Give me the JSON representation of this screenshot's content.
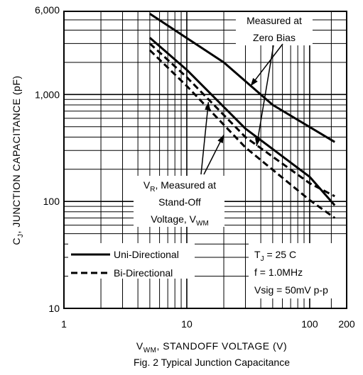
{
  "chart_data": {
    "type": "line",
    "scale": "log-log",
    "xlim": [
      1,
      200
    ],
    "ylim": [
      10,
      6000
    ],
    "grid": true,
    "x_ticks": [
      {
        "value": 1,
        "label": "1"
      },
      {
        "value": 10,
        "label": "10"
      },
      {
        "value": 100,
        "label": "100"
      },
      {
        "value": 200,
        "label": "200"
      }
    ],
    "y_ticks": [
      {
        "value": 10,
        "label": "10"
      },
      {
        "value": 100,
        "label": "100"
      },
      {
        "value": 1000,
        "label": "1,000"
      },
      {
        "value": 6000,
        "label": "6,000"
      }
    ],
    "xlabel": {
      "main": "V",
      "sub": "WM",
      "rest": ", STANDOFF VOLTAGE (V)"
    },
    "ylabel": {
      "main": "C",
      "sub": "J",
      "rest": ", JUNCTION CAPACITANCE (pF)"
    },
    "caption": "Fig. 2 Typical Junction Capacitance",
    "series": [
      {
        "style": "solid",
        "x": [
          5,
          20,
          50,
          160
        ],
        "y": [
          5700,
          2000,
          800,
          360
        ]
      },
      {
        "style": "solid",
        "x": [
          5,
          10,
          30,
          100,
          160
        ],
        "y": [
          3400,
          1700,
          480,
          170,
          92
        ]
      },
      {
        "style": "dashed",
        "x": [
          5,
          10,
          30,
          100,
          160
        ],
        "y": [
          3000,
          1450,
          400,
          148,
          112
        ]
      },
      {
        "style": "dashed",
        "x": [
          5,
          10,
          30,
          100,
          160
        ],
        "y": [
          2600,
          1200,
          320,
          103,
          70
        ]
      }
    ],
    "annotations": {
      "zero_bias": [
        "Measured at",
        "Zero Bias"
      ],
      "standoff": {
        "line1_main": "V",
        "line1_sub": "R",
        "line1_rest": ", Measured at",
        "line2": "Stand-Off",
        "line3_main": "Voltage, V",
        "line3_sub": "WM"
      }
    },
    "legend": {
      "placement": "bottom-left",
      "items": [
        {
          "style": "solid",
          "label": "Uni-Directional"
        },
        {
          "style": "dashed",
          "label": "Bi-Directional"
        }
      ]
    },
    "conditions": {
      "tj": {
        "main": "T",
        "sub": "J",
        "rest": " = 25 C"
      },
      "freq": "f = 1.0MHz",
      "vsig": "Vsig = 50mV p-p"
    }
  }
}
